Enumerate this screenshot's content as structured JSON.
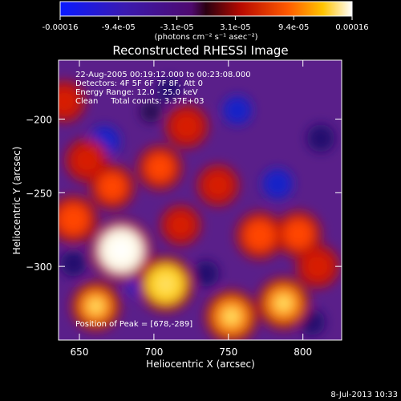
{
  "chart_data": {
    "type": "heatmap",
    "title": "Reconstructed RHESSI Image",
    "xlabel": "Heliocentric X (arcsec)",
    "ylabel": "Heliocentric Y (arcsec)",
    "xlim": [
      636,
      826
    ],
    "ylim": [
      -350,
      -160
    ],
    "x_ticks": [
      650,
      700,
      750,
      800
    ],
    "y_ticks": [
      -200,
      -250,
      -300
    ],
    "colorbar": {
      "range": [
        -0.00016,
        0.00016
      ],
      "tick_labels": [
        "-0.00016",
        "-9.4e-05",
        "-3.1e-05",
        "3.1e-05",
        "9.4e-05",
        "0.00016"
      ],
      "units": "(photons cm⁻² s⁻¹ asec⁻²)",
      "colormap": "blue-purple-red-yellow-white"
    },
    "info_lines": [
      "22-Aug-2005 00:19:12.000 to 00:23:08.000",
      "Detectors: 4F 5F 6F 7F 8F, Att 0",
      "Energy Range: 12.0 - 25.0 keV",
      "Clean     Total counts: 3.37E+03"
    ],
    "peak_label": "Position of Peak = [678,-289]",
    "timestamp": "8-Jul-2013 10:33",
    "features": [
      {
        "kind": "peak",
        "x": 678,
        "y": -289,
        "value": 1.0
      },
      {
        "kind": "hot",
        "x": 708,
        "y": -312,
        "value": 0.82
      },
      {
        "kind": "hot",
        "x": 661,
        "y": -327,
        "value": 0.6
      },
      {
        "kind": "hot",
        "x": 646,
        "y": -268,
        "value": 0.55
      },
      {
        "kind": "hot",
        "x": 752,
        "y": -334,
        "value": 0.72
      },
      {
        "kind": "hot",
        "x": 787,
        "y": -325,
        "value": 0.7
      },
      {
        "kind": "hot",
        "x": 771,
        "y": -279,
        "value": 0.55
      },
      {
        "kind": "hot",
        "x": 797,
        "y": -278,
        "value": 0.5
      },
      {
        "kind": "hot",
        "x": 672,
        "y": -246,
        "value": 0.45
      },
      {
        "kind": "hot",
        "x": 704,
        "y": -233,
        "value": 0.45
      },
      {
        "kind": "hot",
        "x": 722,
        "y": -205,
        "value": 0.4
      },
      {
        "kind": "hot",
        "x": 655,
        "y": -228,
        "value": 0.4
      },
      {
        "kind": "hot",
        "x": 743,
        "y": -245,
        "value": 0.35
      },
      {
        "kind": "hot",
        "x": 640,
        "y": -188,
        "value": 0.35
      },
      {
        "kind": "hot",
        "x": 810,
        "y": -300,
        "value": 0.4
      },
      {
        "kind": "hot",
        "x": 718,
        "y": -272,
        "value": 0.3
      },
      {
        "kind": "cold",
        "x": 693,
        "y": -311,
        "value": -0.55
      },
      {
        "kind": "cold",
        "x": 667,
        "y": -215,
        "value": -0.5
      },
      {
        "kind": "cold",
        "x": 756,
        "y": -194,
        "value": -0.45
      },
      {
        "kind": "cold",
        "x": 783,
        "y": -244,
        "value": -0.5
      },
      {
        "kind": "cold",
        "x": 812,
        "y": -213,
        "value": -0.4
      },
      {
        "kind": "cold",
        "x": 646,
        "y": -298,
        "value": -0.35
      },
      {
        "kind": "cold",
        "x": 735,
        "y": -305,
        "value": -0.35
      },
      {
        "kind": "cold",
        "x": 806,
        "y": -338,
        "value": -0.35
      },
      {
        "kind": "cold",
        "x": 710,
        "y": -180,
        "value": -0.3
      },
      {
        "kind": "cold",
        "x": 698,
        "y": -195,
        "value": -0.2
      }
    ]
  }
}
